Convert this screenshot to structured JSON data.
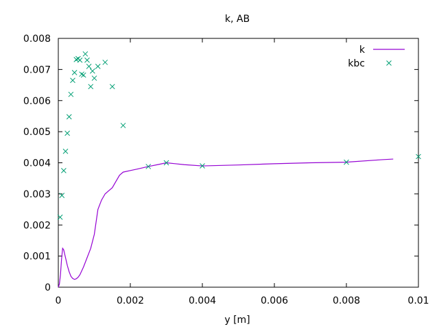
{
  "chart_data": {
    "type": "line",
    "title": "k, AB",
    "xlabel": "y [m]",
    "ylabel": "",
    "xlim": [
      0,
      0.01
    ],
    "ylim": [
      0,
      0.008
    ],
    "grid": false,
    "legend_position": "top-right",
    "x_ticks": [
      0,
      0.002,
      0.004,
      0.006,
      0.008,
      0.01
    ],
    "x_tick_labels": [
      "0",
      "0.002",
      "0.004",
      "0.006",
      "0.008",
      "0.01"
    ],
    "y_ticks": [
      0,
      0.001,
      0.002,
      0.003,
      0.004,
      0.005,
      0.006,
      0.007,
      0.008
    ],
    "y_tick_labels": [
      "0",
      "0.001",
      "0.002",
      "0.003",
      "0.004",
      "0.005",
      "0.006",
      "0.007",
      "0.008"
    ],
    "series": [
      {
        "name": "k",
        "style": "line",
        "color": "#9400d3",
        "x": [
          0.0,
          3e-05,
          6e-05,
          9e-05,
          0.00012,
          0.00015,
          0.00018,
          0.00021,
          0.00025,
          0.0003,
          0.00035,
          0.0004,
          0.00045,
          0.0005,
          0.00055,
          0.0006,
          0.0007,
          0.0008,
          0.0009,
          0.001,
          0.0011,
          0.0012,
          0.0013,
          0.0014,
          0.0015,
          0.0016,
          0.0017,
          0.0018,
          0.002,
          0.0022,
          0.0025,
          0.0028,
          0.003,
          0.0035,
          0.004,
          0.005,
          0.006,
          0.007,
          0.008,
          0.009,
          0.0093
        ],
        "y": [
          0.0,
          0.0001,
          0.0004,
          0.0009,
          0.00125,
          0.0012,
          0.00105,
          0.0009,
          0.0007,
          0.0005,
          0.00035,
          0.00028,
          0.00025,
          0.00027,
          0.00032,
          0.0004,
          0.00065,
          0.00095,
          0.00125,
          0.0017,
          0.0025,
          0.0028,
          0.003,
          0.0031,
          0.0032,
          0.0034,
          0.0036,
          0.0037,
          0.00375,
          0.0038,
          0.00388,
          0.00395,
          0.004,
          0.00394,
          0.0039,
          0.00393,
          0.00397,
          0.004,
          0.00402,
          0.0041,
          0.00412
        ]
      },
      {
        "name": "kbc",
        "style": "points",
        "marker": "x",
        "color": "#009e73",
        "x": [
          5e-05,
          0.0001,
          0.00015,
          0.0002,
          0.00025,
          0.0003,
          0.00035,
          0.0004,
          0.00045,
          0.0005,
          0.00055,
          0.0006,
          0.00065,
          0.0007,
          0.00075,
          0.0008,
          0.00085,
          0.0009,
          0.00095,
          0.001,
          0.0011,
          0.0013,
          0.0015,
          0.0018,
          0.0025,
          0.003,
          0.004,
          0.008,
          0.01
        ],
        "y": [
          0.00225,
          0.00295,
          0.00375,
          0.00437,
          0.00495,
          0.00548,
          0.0062,
          0.00665,
          0.0069,
          0.00732,
          0.00735,
          0.0073,
          0.00685,
          0.00682,
          0.0075,
          0.0073,
          0.0071,
          0.00645,
          0.00695,
          0.00672,
          0.0071,
          0.00723,
          0.00645,
          0.0052,
          0.00388,
          0.004,
          0.0039,
          0.00402,
          0.0042
        ]
      }
    ]
  }
}
